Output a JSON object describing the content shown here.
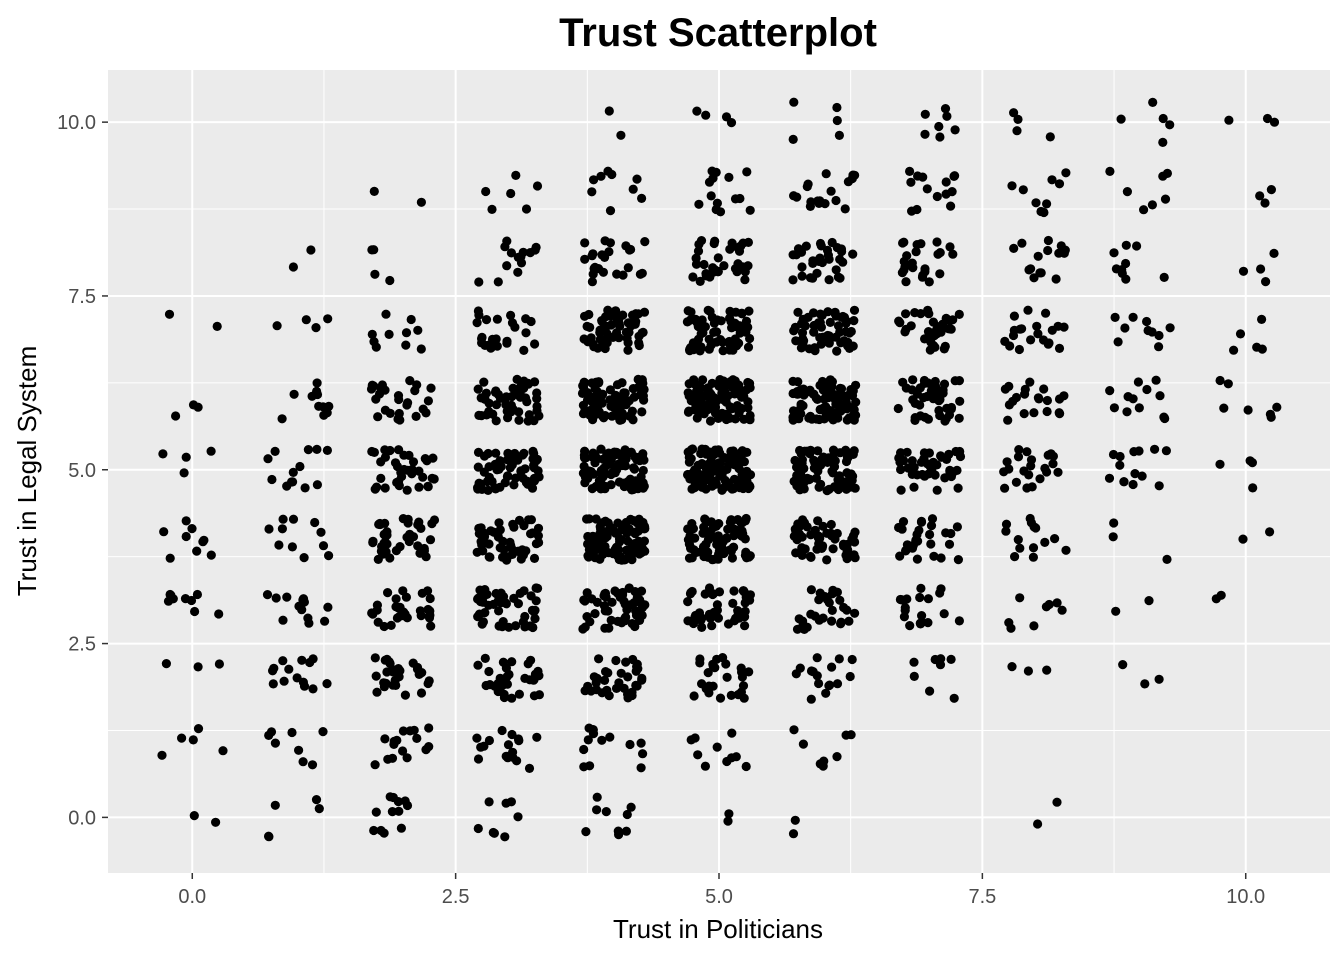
{
  "chart_data": {
    "type": "scatter",
    "title": "Trust Scatterplot",
    "xlabel": "Trust in Politicians",
    "ylabel": "Trust in Legal System",
    "xlim": [
      -0.8,
      10.8
    ],
    "ylim": [
      -0.8,
      10.75
    ],
    "x_ticks": [
      0.0,
      2.5,
      5.0,
      7.5,
      10.0
    ],
    "x_tick_labels": [
      "0.0",
      "2.5",
      "5.0",
      "7.5",
      "10.0"
    ],
    "y_ticks": [
      0.0,
      2.5,
      5.0,
      7.5,
      10.0
    ],
    "y_tick_labels": [
      "0.0",
      "2.5",
      "5.0",
      "7.5",
      "10.0"
    ],
    "grid": true,
    "jitter": 0.3,
    "point_color": "#000000",
    "panel_color": "#ebebeb",
    "grid_color": "#ffffff",
    "points": [
      [
        0,
        0,
        2
      ],
      [
        0,
        1,
        5
      ],
      [
        0,
        2,
        3
      ],
      [
        0,
        3,
        9
      ],
      [
        0,
        4,
        9
      ],
      [
        0,
        5,
        4
      ],
      [
        0,
        6,
        3
      ],
      [
        0,
        7,
        2
      ],
      [
        1,
        0,
        5
      ],
      [
        1,
        1,
        8
      ],
      [
        1,
        2,
        14
      ],
      [
        1,
        3,
        13
      ],
      [
        1,
        4,
        11
      ],
      [
        1,
        5,
        13
      ],
      [
        1,
        6,
        11
      ],
      [
        1,
        7,
        4
      ],
      [
        1,
        8,
        2
      ],
      [
        2,
        0,
        12
      ],
      [
        2,
        1,
        16
      ],
      [
        2,
        2,
        28
      ],
      [
        2,
        3,
        30
      ],
      [
        2,
        4,
        38
      ],
      [
        2,
        5,
        36
      ],
      [
        2,
        6,
        26
      ],
      [
        2,
        7,
        10
      ],
      [
        2,
        8,
        4
      ],
      [
        2,
        9,
        2
      ],
      [
        3,
        0,
        8
      ],
      [
        3,
        1,
        18
      ],
      [
        3,
        2,
        32
      ],
      [
        3,
        3,
        45
      ],
      [
        3,
        4,
        50
      ],
      [
        3,
        5,
        60
      ],
      [
        3,
        6,
        50
      ],
      [
        3,
        7,
        26
      ],
      [
        3,
        8,
        14
      ],
      [
        3,
        9,
        6
      ],
      [
        4,
        0,
        9
      ],
      [
        4,
        1,
        14
      ],
      [
        4,
        2,
        34
      ],
      [
        4,
        3,
        55
      ],
      [
        4,
        4,
        90
      ],
      [
        4,
        5,
        100
      ],
      [
        4,
        6,
        85
      ],
      [
        4,
        7,
        55
      ],
      [
        4,
        8,
        24
      ],
      [
        4,
        9,
        9
      ],
      [
        4,
        10,
        2
      ],
      [
        5,
        0,
        2
      ],
      [
        5,
        1,
        10
      ],
      [
        5,
        2,
        26
      ],
      [
        5,
        3,
        46
      ],
      [
        5,
        4,
        80
      ],
      [
        5,
        5,
        110
      ],
      [
        5,
        6,
        100
      ],
      [
        5,
        7,
        65
      ],
      [
        5,
        8,
        35
      ],
      [
        5,
        9,
        14
      ],
      [
        5,
        10,
        4
      ],
      [
        6,
        0,
        2
      ],
      [
        6,
        1,
        8
      ],
      [
        6,
        2,
        16
      ],
      [
        6,
        3,
        28
      ],
      [
        6,
        4,
        55
      ],
      [
        6,
        5,
        80
      ],
      [
        6,
        6,
        85
      ],
      [
        6,
        7,
        60
      ],
      [
        6,
        8,
        32
      ],
      [
        6,
        9,
        18
      ],
      [
        6,
        10,
        5
      ],
      [
        7,
        1,
        0
      ],
      [
        7,
        2,
        8
      ],
      [
        7,
        3,
        20
      ],
      [
        7,
        4,
        28
      ],
      [
        7,
        5,
        45
      ],
      [
        7,
        6,
        45
      ],
      [
        7,
        7,
        35
      ],
      [
        7,
        8,
        24
      ],
      [
        7,
        9,
        14
      ],
      [
        7,
        10,
        7
      ],
      [
        8,
        0,
        2
      ],
      [
        8,
        2,
        3
      ],
      [
        8,
        3,
        8
      ],
      [
        8,
        4,
        14
      ],
      [
        8,
        5,
        22
      ],
      [
        8,
        6,
        20
      ],
      [
        8,
        7,
        20
      ],
      [
        8,
        8,
        15
      ],
      [
        8,
        9,
        9
      ],
      [
        8,
        10,
        4
      ],
      [
        9,
        2,
        3
      ],
      [
        9,
        3,
        2
      ],
      [
        9,
        4,
        3
      ],
      [
        9,
        5,
        14
      ],
      [
        9,
        6,
        12
      ],
      [
        9,
        7,
        10
      ],
      [
        9,
        8,
        9
      ],
      [
        9,
        9,
        7
      ],
      [
        9,
        10,
        5
      ],
      [
        10,
        3,
        2
      ],
      [
        10,
        4,
        2
      ],
      [
        10,
        5,
        4
      ],
      [
        10,
        6,
        7
      ],
      [
        10,
        7,
        5
      ],
      [
        10,
        8,
        4
      ],
      [
        10,
        9,
        3
      ],
      [
        10,
        10,
        3
      ]
    ]
  }
}
